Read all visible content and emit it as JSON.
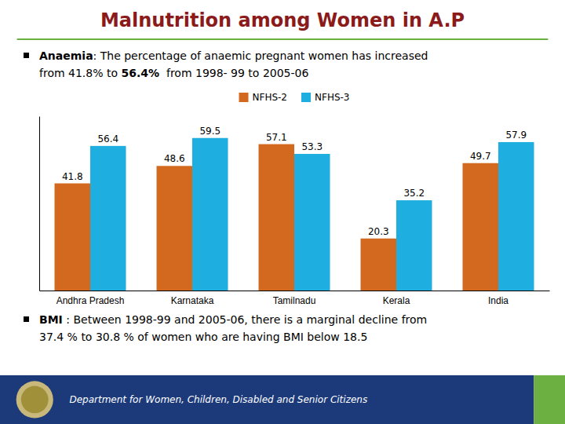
{
  "chart_data": {
    "type": "bar",
    "title": "Malnutrition among Women in A.P",
    "categories": [
      "Andhra Pradesh",
      "Karnataka",
      "Tamilnadu",
      "Kerala",
      "India"
    ],
    "series": [
      {
        "name": "NFHS-2",
        "color": "#D2691E",
        "values": [
          41.8,
          48.6,
          57.1,
          20.3,
          49.7
        ]
      },
      {
        "name": "NFHS-3",
        "color": "#1EAEE0",
        "values": [
          56.4,
          59.5,
          53.3,
          35.2,
          57.9
        ]
      }
    ],
    "ylim": [
      0,
      68
    ],
    "tick_labels": "x",
    "data_labels": true,
    "legend": "top",
    "grid": false,
    "annotations": [
      [
        "Anaemia",
        ": The percentage of anaemic pregnant women has increased"
      ],
      [
        "from 41.8% to ",
        "56.4%",
        "  from 1998- 99 to 2005-06"
      ],
      [
        "BMI",
        " : Between 1998-99 and 2005-06, there is a marginal decline from"
      ],
      [
        "37.4 % to 30.8 % of women who are having BMI below 18.5"
      ],
      [
        "Department for Women, Children, Disabled and Senior Citizens"
      ]
    ]
  }
}
